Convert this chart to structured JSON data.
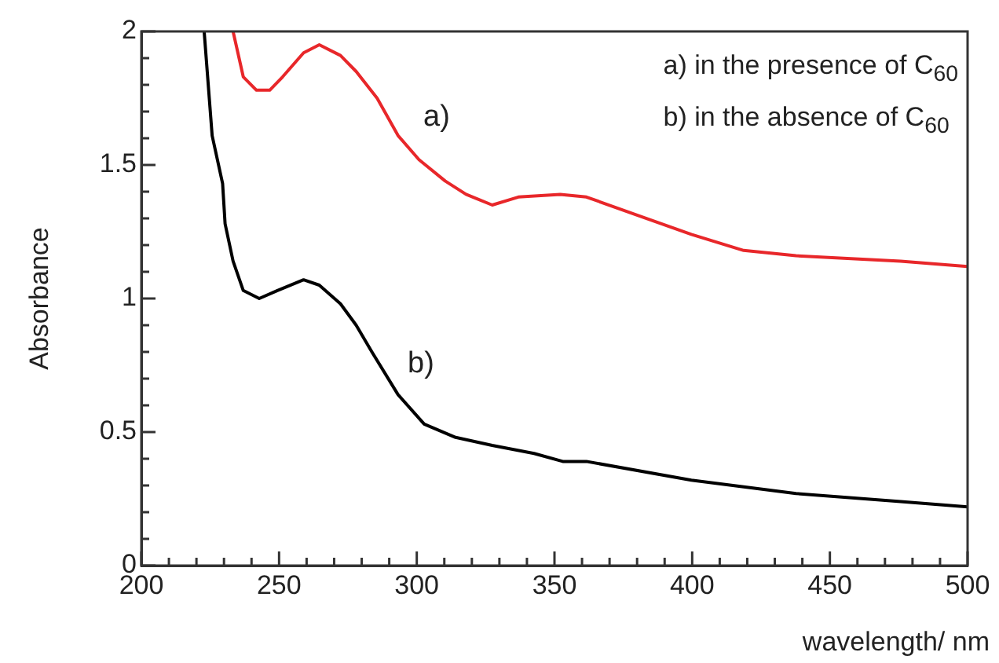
{
  "chart_data": {
    "type": "line",
    "xlabel": "wavelength/ nm",
    "ylabel": "Absorbance",
    "xlim": [
      200,
      500
    ],
    "xticks": [
      200,
      {
        "value": 210,
        "label": null
      },
      {
        "value": 220,
        "label": null
      },
      {
        "value": 230,
        "label": null
      },
      {
        "value": 240,
        "label": null
      },
      250,
      {
        "value": 260,
        "label": null
      },
      {
        "value": 270,
        "label": null
      },
      {
        "value": 280,
        "label": null
      },
      {
        "value": 290,
        "label": null
      },
      300,
      {
        "value": 310,
        "label": null
      },
      {
        "value": 320,
        "label": null
      },
      {
        "value": 330,
        "label": null
      },
      {
        "value": 340,
        "label": null
      },
      350,
      {
        "value": 360,
        "label": null
      },
      {
        "value": 370,
        "label": null
      },
      {
        "value": 380,
        "label": null
      },
      {
        "value": 390,
        "label": null
      },
      400,
      {
        "value": 410,
        "label": null
      },
      {
        "value": 420,
        "label": null
      },
      {
        "value": 430,
        "label": null
      },
      {
        "value": 440,
        "label": null
      },
      450,
      {
        "value": 460,
        "label": null
      },
      {
        "value": 470,
        "label": null
      },
      {
        "value": 480,
        "label": null
      },
      {
        "value": 490,
        "label": null
      },
      500
    ],
    "ylim": [
      0,
      2
    ],
    "yticks": [
      0,
      {
        "value": 0.1,
        "label": null
      },
      {
        "value": 0.2,
        "label": null
      },
      {
        "value": 0.3,
        "label": null
      },
      {
        "value": 0.4,
        "label": null
      },
      0.5,
      {
        "value": 0.6,
        "label": null
      },
      {
        "value": 0.7,
        "label": null
      },
      {
        "value": 0.8,
        "label": null
      },
      {
        "value": 0.9,
        "label": null
      },
      1,
      {
        "value": 1.1,
        "label": null
      },
      {
        "value": 1.2,
        "label": null
      },
      {
        "value": 1.3,
        "label": null
      },
      {
        "value": 1.4,
        "label": null
      },
      1.5,
      {
        "value": 1.6,
        "label": null
      },
      {
        "value": 1.7,
        "label": null
      },
      {
        "value": 1.8,
        "label": null
      },
      {
        "value": 1.9,
        "label": null
      },
      2
    ],
    "grid": false,
    "legend": false,
    "marker": "none",
    "line_style": "solid",
    "series": [
      {
        "name": "a)",
        "color": "#e8272a",
        "x": [
          233.3,
          237,
          241.8,
          246.6,
          251.3,
          258.9,
          264.6,
          272.3,
          278,
          285.6,
          293.2,
          300.8,
          310.3,
          317.9,
          327.4,
          336.9,
          352.1,
          361.6,
          380.6,
          399.7,
          418.7,
          437.7,
          475.7,
          500
        ],
        "values": [
          2,
          1.83,
          1.78,
          1.78,
          1.83,
          1.92,
          1.95,
          1.91,
          1.85,
          1.75,
          1.61,
          1.52,
          1.44,
          1.39,
          1.35,
          1.38,
          1.39,
          1.38,
          1.31,
          1.24,
          1.18,
          1.16,
          1.14,
          1.12
        ]
      },
      {
        "name": "b)",
        "color": "#000000",
        "x": [
          222.8,
          225.7,
          229.5,
          230.4,
          233.3,
          237,
          242.8,
          249.4,
          258.9,
          264.6,
          272.3,
          278,
          283.7,
          293.2,
          302.7,
          314.1,
          327.4,
          342.6,
          353,
          361.6,
          399.7,
          437.7,
          475.7,
          500
        ],
        "values": [
          2,
          1.61,
          1.43,
          1.28,
          1.14,
          1.03,
          1,
          1.03,
          1.07,
          1.05,
          0.98,
          0.9,
          0.8,
          0.64,
          0.53,
          0.48,
          0.45,
          0.42,
          0.39,
          0.39,
          0.32,
          0.27,
          0.24,
          0.22
        ]
      }
    ],
    "annotations": [
      "a) in the presence of C$_{60}$",
      "b) in the absence of C$_{60}$"
    ]
  }
}
